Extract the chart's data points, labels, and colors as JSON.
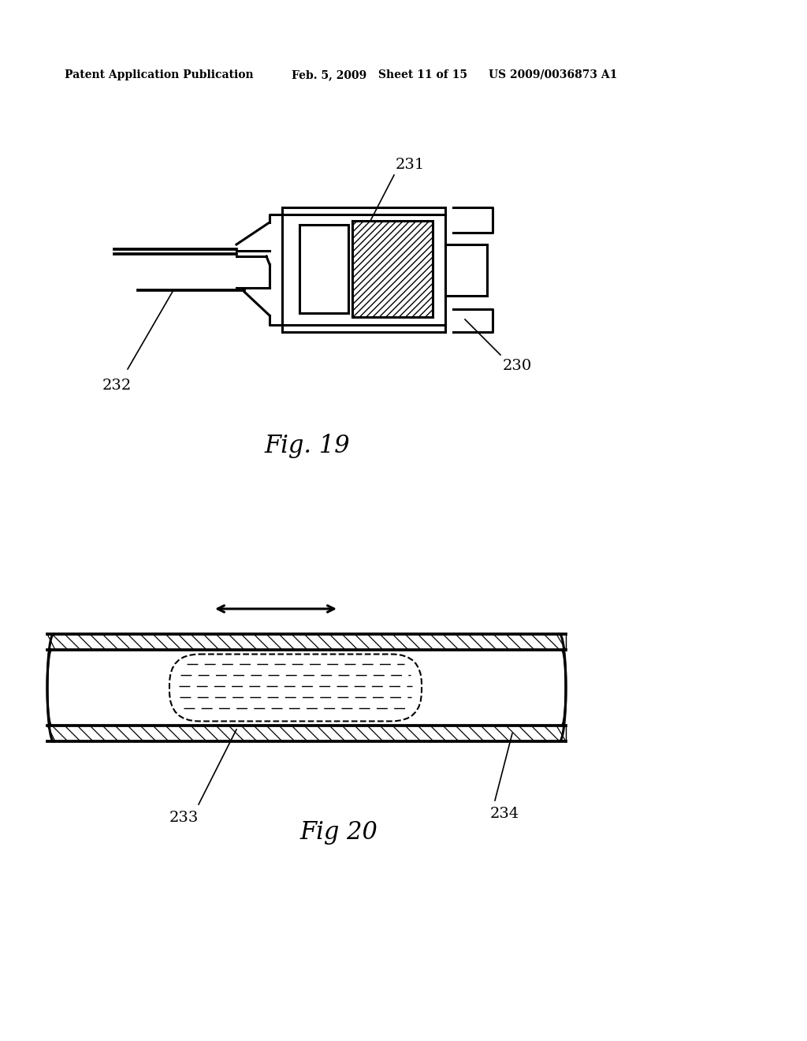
{
  "bg_color": "#ffffff",
  "header_text": "Patent Application Publication",
  "header_date": "Feb. 5, 2009",
  "header_sheet": "Sheet 11 of 15",
  "header_patent": "US 2009/0036873 A1",
  "fig19_title": "Fig. 19",
  "fig20_title": "Fig 20",
  "label_230": "230",
  "label_231": "231",
  "label_232": "232",
  "label_233": "233",
  "label_234": "234",
  "line_color": "#000000",
  "linewidth": 2.2,
  "thin_lw": 1.2
}
